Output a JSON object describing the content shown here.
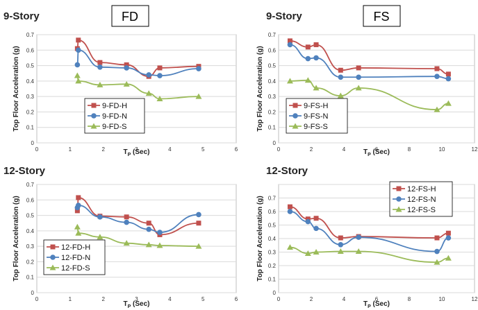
{
  "headers": {
    "fd": "FD",
    "fs": "FS"
  },
  "colors": {
    "H": "#c0504d",
    "N": "#4f81bd",
    "S": "#9bbb59"
  },
  "chart_data": [
    {
      "type": "scatter",
      "title": "9-Story",
      "xlabel_main": "T",
      "xlabel_sub": "P",
      "xlabel_unit": " (Sec)",
      "ylabel": "Top Floor Acceleration (g)",
      "xlim": [
        0,
        6
      ],
      "xticks": [
        0,
        1,
        2,
        3,
        4,
        5,
        6
      ],
      "ylim": [
        0,
        0.7
      ],
      "yticks": [
        0,
        0.1,
        0.2,
        0.3,
        0.4,
        0.5,
        0.6,
        0.7
      ],
      "ytick_labels": [
        "0",
        "0.1",
        "0.2",
        "0.3",
        "0.4",
        "0.5",
        "0.6",
        "0.7"
      ],
      "legend": "left-middle",
      "series": [
        {
          "name": "9-FD-H",
          "key": "H",
          "marker": "square",
          "x": [
            1.22,
            1.25,
            1.9,
            2.7,
            3.37,
            3.7,
            4.87
          ],
          "y": [
            0.61,
            0.665,
            0.52,
            0.505,
            0.43,
            0.485,
            0.495
          ]
        },
        {
          "name": "9-FD-N",
          "key": "N",
          "marker": "circle",
          "x": [
            1.22,
            1.25,
            1.9,
            2.7,
            3.37,
            3.7,
            4.87
          ],
          "y": [
            0.505,
            0.6,
            0.49,
            0.485,
            0.44,
            0.435,
            0.48
          ]
        },
        {
          "name": "9-FD-S",
          "key": "S",
          "marker": "triangle",
          "x": [
            1.22,
            1.25,
            1.9,
            2.7,
            3.37,
            3.7,
            4.87
          ],
          "y": [
            0.435,
            0.4,
            0.375,
            0.38,
            0.32,
            0.285,
            0.3
          ]
        }
      ]
    },
    {
      "type": "scatter",
      "title": "9-Story",
      "xlabel_main": "T",
      "xlabel_sub": "P",
      "xlabel_unit": " (Sec)",
      "ylabel": "Top Floor Acceleration (g)",
      "xlim": [
        0,
        12
      ],
      "xticks": [
        0,
        2,
        4,
        6,
        8,
        10,
        12
      ],
      "ylim": [
        0,
        0.7
      ],
      "yticks": [
        0,
        0.1,
        0.2,
        0.3,
        0.4,
        0.5,
        0.6,
        0.7
      ],
      "ytick_labels": [
        "0",
        "0.1",
        "0.2",
        "0.3",
        "0.4",
        "0.5",
        "0.6",
        "0.7"
      ],
      "legend": "left-bottom",
      "series": [
        {
          "name": "9-FS-H",
          "key": "H",
          "marker": "square",
          "x": [
            0.7,
            1.8,
            2.3,
            3.8,
            4.9,
            9.7,
            10.4
          ],
          "y": [
            0.66,
            0.62,
            0.635,
            0.47,
            0.485,
            0.48,
            0.445
          ]
        },
        {
          "name": "9-FS-N",
          "key": "N",
          "marker": "circle",
          "x": [
            0.7,
            1.8,
            2.3,
            3.8,
            4.9,
            9.7,
            10.4
          ],
          "y": [
            0.635,
            0.545,
            0.55,
            0.425,
            0.425,
            0.43,
            0.415
          ]
        },
        {
          "name": "9-FS-S",
          "key": "S",
          "marker": "triangle",
          "x": [
            0.7,
            1.8,
            2.3,
            3.8,
            4.9,
            9.7,
            10.4
          ],
          "y": [
            0.4,
            0.405,
            0.355,
            0.305,
            0.355,
            0.215,
            0.255
          ]
        }
      ]
    },
    {
      "type": "scatter",
      "title": "12-Story",
      "xlabel_main": "T",
      "xlabel_sub": "P",
      "xlabel_unit": " (Sec)",
      "ylabel": "Top Floor Acceleration (g)",
      "xlim": [
        0,
        6
      ],
      "xticks": [
        0,
        1,
        2,
        3,
        4,
        5,
        6
      ],
      "ylim": [
        0,
        0.7
      ],
      "yticks": [
        0,
        0.1,
        0.2,
        0.3,
        0.4,
        0.5,
        0.6,
        0.7
      ],
      "ytick_labels": [
        "0",
        "0.1",
        "0.2",
        "0.3",
        "0.4",
        "0.5",
        "0.6",
        "0.7"
      ],
      "legend": "left-bottom",
      "series": [
        {
          "name": "12-FD-H",
          "key": "H",
          "marker": "square",
          "x": [
            1.22,
            1.25,
            1.9,
            2.7,
            3.37,
            3.7,
            4.87
          ],
          "y": [
            0.53,
            0.615,
            0.495,
            0.49,
            0.45,
            0.375,
            0.45
          ]
        },
        {
          "name": "12-FD-N",
          "key": "N",
          "marker": "circle",
          "x": [
            1.22,
            1.25,
            1.9,
            2.7,
            3.37,
            3.7,
            4.87
          ],
          "y": [
            0.55,
            0.565,
            0.49,
            0.455,
            0.41,
            0.39,
            0.505
          ]
        },
        {
          "name": "12-FD-S",
          "key": "S",
          "marker": "triangle",
          "x": [
            1.22,
            1.25,
            1.9,
            2.7,
            3.37,
            3.7,
            4.87
          ],
          "y": [
            0.425,
            0.385,
            0.36,
            0.32,
            0.31,
            0.305,
            0.3
          ]
        }
      ]
    },
    {
      "type": "scatter",
      "title": "12-Story",
      "xlabel_main": "T",
      "xlabel_sub": "P",
      "xlabel_unit": " (Sec)",
      "ylabel": "Top Floor Acceleration (g)",
      "xlim": [
        0,
        12
      ],
      "xticks": [
        0,
        2,
        4,
        6,
        8,
        10,
        12
      ],
      "ylim": [
        0,
        0.8
      ],
      "yticks": [
        0,
        0.1,
        0.2,
        0.3,
        0.4,
        0.5,
        0.6,
        0.7,
        0.8
      ],
      "ytick_labels": [
        "0",
        "0.1",
        "0.2",
        "0.3",
        "0.4",
        "0.5",
        "0.6",
        "0.7",
        ""
      ],
      "legend": "top-right",
      "series": [
        {
          "name": "12-FS-H",
          "key": "H",
          "marker": "square",
          "x": [
            0.7,
            1.8,
            2.3,
            3.8,
            4.9,
            9.7,
            10.4
          ],
          "y": [
            0.635,
            0.545,
            0.55,
            0.405,
            0.415,
            0.405,
            0.44
          ]
        },
        {
          "name": "12-FS-N",
          "key": "N",
          "marker": "circle",
          "x": [
            0.7,
            1.8,
            2.3,
            3.8,
            4.9,
            9.7,
            10.4
          ],
          "y": [
            0.6,
            0.525,
            0.475,
            0.355,
            0.41,
            0.305,
            0.405
          ]
        },
        {
          "name": "12-FS-S",
          "key": "S",
          "marker": "triangle",
          "x": [
            0.7,
            1.8,
            2.3,
            3.8,
            4.9,
            9.7,
            10.4
          ],
          "y": [
            0.335,
            0.29,
            0.3,
            0.305,
            0.305,
            0.225,
            0.255
          ]
        }
      ]
    }
  ]
}
